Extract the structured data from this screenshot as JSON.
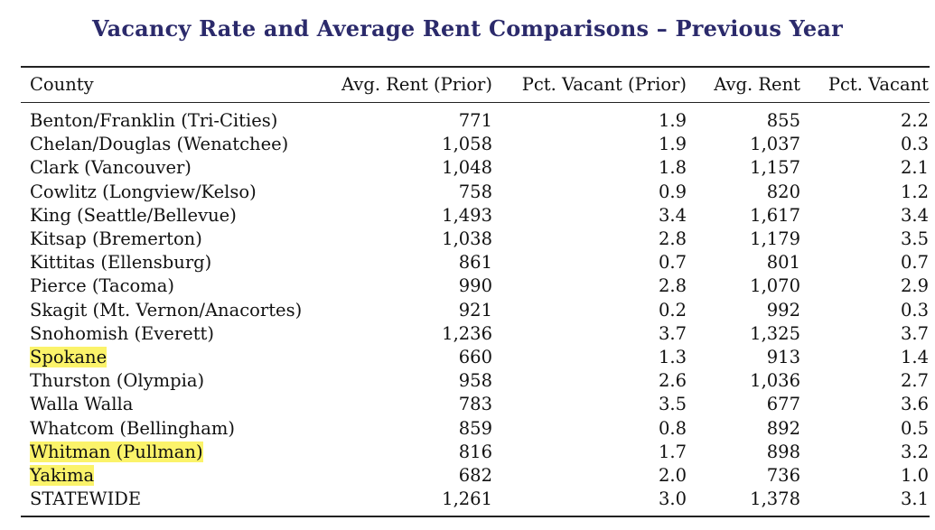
{
  "title": "Vacancy Rate and Average Rent Comparisons – Previous Year",
  "columns": [
    "County",
    "Avg. Rent (Prior)",
    "Pct. Vacant (Prior)",
    "Avg. Rent",
    "Pct. Vacant"
  ],
  "highlight_color": "#fbf36a",
  "title_color": "#2b2a6b",
  "rows": [
    {
      "county": "Benton/Franklin (Tri-Cities)",
      "avg_rent_prior": "771",
      "pct_vacant_prior": "1.9",
      "avg_rent": "855",
      "pct_vacant": "2.2",
      "highlighted": false
    },
    {
      "county": "Chelan/Douglas (Wenatchee)",
      "avg_rent_prior": "1,058",
      "pct_vacant_prior": "1.9",
      "avg_rent": "1,037",
      "pct_vacant": "0.3",
      "highlighted": false
    },
    {
      "county": "Clark (Vancouver)",
      "avg_rent_prior": "1,048",
      "pct_vacant_prior": "1.8",
      "avg_rent": "1,157",
      "pct_vacant": "2.1",
      "highlighted": false
    },
    {
      "county": "Cowlitz (Longview/Kelso)",
      "avg_rent_prior": "758",
      "pct_vacant_prior": "0.9",
      "avg_rent": "820",
      "pct_vacant": "1.2",
      "highlighted": false
    },
    {
      "county": "King (Seattle/Bellevue)",
      "avg_rent_prior": "1,493",
      "pct_vacant_prior": "3.4",
      "avg_rent": "1,617",
      "pct_vacant": "3.4",
      "highlighted": false
    },
    {
      "county": "Kitsap (Bremerton)",
      "avg_rent_prior": "1,038",
      "pct_vacant_prior": "2.8",
      "avg_rent": "1,179",
      "pct_vacant": "3.5",
      "highlighted": false
    },
    {
      "county": "Kittitas (Ellensburg)",
      "avg_rent_prior": "861",
      "pct_vacant_prior": "0.7",
      "avg_rent": "801",
      "pct_vacant": "0.7",
      "highlighted": false
    },
    {
      "county": "Pierce (Tacoma)",
      "avg_rent_prior": "990",
      "pct_vacant_prior": "2.8",
      "avg_rent": "1,070",
      "pct_vacant": "2.9",
      "highlighted": false
    },
    {
      "county": "Skagit (Mt. Vernon/Anacortes)",
      "avg_rent_prior": "921",
      "pct_vacant_prior": "0.2",
      "avg_rent": "992",
      "pct_vacant": "0.3",
      "highlighted": false
    },
    {
      "county": "Snohomish (Everett)",
      "avg_rent_prior": "1,236",
      "pct_vacant_prior": "3.7",
      "avg_rent": "1,325",
      "pct_vacant": "3.7",
      "highlighted": false
    },
    {
      "county": "Spokane",
      "avg_rent_prior": "660",
      "pct_vacant_prior": "1.3",
      "avg_rent": "913",
      "pct_vacant": "1.4",
      "highlighted": true
    },
    {
      "county": "Thurston (Olympia)",
      "avg_rent_prior": "958",
      "pct_vacant_prior": "2.6",
      "avg_rent": "1,036",
      "pct_vacant": "2.7",
      "highlighted": false
    },
    {
      "county": "Walla Walla",
      "avg_rent_prior": "783",
      "pct_vacant_prior": "3.5",
      "avg_rent": "677",
      "pct_vacant": "3.6",
      "highlighted": false
    },
    {
      "county": "Whatcom (Bellingham)",
      "avg_rent_prior": "859",
      "pct_vacant_prior": "0.8",
      "avg_rent": "892",
      "pct_vacant": "0.5",
      "highlighted": false
    },
    {
      "county": "Whitman (Pullman)",
      "avg_rent_prior": "816",
      "pct_vacant_prior": "1.7",
      "avg_rent": "898",
      "pct_vacant": "3.2",
      "highlighted": true
    },
    {
      "county": "Yakima",
      "avg_rent_prior": "682",
      "pct_vacant_prior": "2.0",
      "avg_rent": "736",
      "pct_vacant": "1.0",
      "highlighted": true
    },
    {
      "county": "STATEWIDE",
      "avg_rent_prior": "1,261",
      "pct_vacant_prior": "3.0",
      "avg_rent": "1,378",
      "pct_vacant": "3.1",
      "highlighted": false
    }
  ]
}
